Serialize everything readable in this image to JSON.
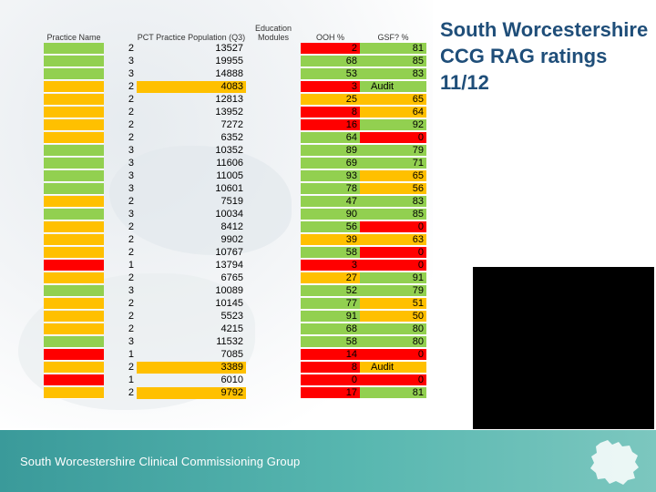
{
  "title": "South Worcestershire CCG RAG ratings 11/12",
  "footer": {
    "org_name": "South Worcestershire Clinical Commissioning Group"
  },
  "table": {
    "headers": {
      "practice_name": "Practice Name",
      "population": "PCT Practice Population (Q3)",
      "education": "Education Modules",
      "ooh": "OOH %",
      "gsf": "GSF? %"
    },
    "colors": {
      "green": "#92d050",
      "amber": "#ffc000",
      "red": "#ff0000"
    },
    "rows": [
      {
        "name_color": "green",
        "rag": "2",
        "pop": "13527",
        "pop_highlight": false,
        "ooh": "2",
        "ooh_color": "red",
        "gsf": "81",
        "gsf_note": "",
        "gsf_color": "green"
      },
      {
        "name_color": "green",
        "rag": "3",
        "pop": "19955",
        "pop_highlight": false,
        "ooh": "68",
        "ooh_color": "green",
        "gsf": "85",
        "gsf_note": "",
        "gsf_color": "green"
      },
      {
        "name_color": "green",
        "rag": "3",
        "pop": "14888",
        "pop_highlight": false,
        "ooh": "53",
        "ooh_color": "green",
        "gsf": "83",
        "gsf_note": "",
        "gsf_color": "green"
      },
      {
        "name_color": "amber",
        "rag": "2",
        "pop": "4083",
        "pop_highlight": true,
        "ooh": "3",
        "ooh_color": "red",
        "gsf": "",
        "gsf_note": "Audit",
        "gsf_color": "green"
      },
      {
        "name_color": "amber",
        "rag": "2",
        "pop": "12813",
        "pop_highlight": false,
        "ooh": "25",
        "ooh_color": "amber",
        "gsf": "65",
        "gsf_note": "",
        "gsf_color": "amber"
      },
      {
        "name_color": "amber",
        "rag": "2",
        "pop": "13952",
        "pop_highlight": false,
        "ooh": "8",
        "ooh_color": "red",
        "gsf": "64",
        "gsf_note": "",
        "gsf_color": "amber"
      },
      {
        "name_color": "amber",
        "rag": "2",
        "pop": "7272",
        "pop_highlight": false,
        "ooh": "16",
        "ooh_color": "red",
        "gsf": "92",
        "gsf_note": "",
        "gsf_color": "green"
      },
      {
        "name_color": "amber",
        "rag": "2",
        "pop": "6352",
        "pop_highlight": false,
        "ooh": "64",
        "ooh_color": "green",
        "gsf": "0",
        "gsf_note": "",
        "gsf_color": "red"
      },
      {
        "name_color": "green",
        "rag": "3",
        "pop": "10352",
        "pop_highlight": false,
        "ooh": "89",
        "ooh_color": "green",
        "gsf": "79",
        "gsf_note": "",
        "gsf_color": "green"
      },
      {
        "name_color": "green",
        "rag": "3",
        "pop": "11606",
        "pop_highlight": false,
        "ooh": "69",
        "ooh_color": "green",
        "gsf": "71",
        "gsf_note": "",
        "gsf_color": "green"
      },
      {
        "name_color": "green",
        "rag": "3",
        "pop": "11005",
        "pop_highlight": false,
        "ooh": "93",
        "ooh_color": "green",
        "gsf": "65",
        "gsf_note": "",
        "gsf_color": "amber"
      },
      {
        "name_color": "green",
        "rag": "3",
        "pop": "10601",
        "pop_highlight": false,
        "ooh": "78",
        "ooh_color": "green",
        "gsf": "56",
        "gsf_note": "",
        "gsf_color": "amber"
      },
      {
        "name_color": "amber",
        "rag": "2",
        "pop": "7519",
        "pop_highlight": false,
        "ooh": "47",
        "ooh_color": "green",
        "gsf": "83",
        "gsf_note": "",
        "gsf_color": "green"
      },
      {
        "name_color": "green",
        "rag": "3",
        "pop": "10034",
        "pop_highlight": false,
        "ooh": "90",
        "ooh_color": "green",
        "gsf": "85",
        "gsf_note": "",
        "gsf_color": "green"
      },
      {
        "name_color": "amber",
        "rag": "2",
        "pop": "8412",
        "pop_highlight": false,
        "ooh": "56",
        "ooh_color": "green",
        "gsf": "0",
        "gsf_note": "",
        "gsf_color": "red"
      },
      {
        "name_color": "amber",
        "rag": "2",
        "pop": "9902",
        "pop_highlight": false,
        "ooh": "39",
        "ooh_color": "amber",
        "gsf": "63",
        "gsf_note": "",
        "gsf_color": "amber"
      },
      {
        "name_color": "amber",
        "rag": "2",
        "pop": "10767",
        "pop_highlight": false,
        "ooh": "58",
        "ooh_color": "green",
        "gsf": "0",
        "gsf_note": "",
        "gsf_color": "red"
      },
      {
        "name_color": "red",
        "rag": "1",
        "pop": "13794",
        "pop_highlight": false,
        "ooh": "3",
        "ooh_color": "red",
        "gsf": "0",
        "gsf_note": "",
        "gsf_color": "red"
      },
      {
        "name_color": "amber",
        "rag": "2",
        "pop": "6765",
        "pop_highlight": false,
        "ooh": "27",
        "ooh_color": "amber",
        "gsf": "91",
        "gsf_note": "",
        "gsf_color": "green"
      },
      {
        "name_color": "green",
        "rag": "3",
        "pop": "10089",
        "pop_highlight": false,
        "ooh": "52",
        "ooh_color": "green",
        "gsf": "79",
        "gsf_note": "",
        "gsf_color": "green"
      },
      {
        "name_color": "amber",
        "rag": "2",
        "pop": "10145",
        "pop_highlight": false,
        "ooh": "77",
        "ooh_color": "green",
        "gsf": "51",
        "gsf_note": "",
        "gsf_color": "amber"
      },
      {
        "name_color": "amber",
        "rag": "2",
        "pop": "5523",
        "pop_highlight": false,
        "ooh": "91",
        "ooh_color": "green",
        "gsf": "50",
        "gsf_note": "",
        "gsf_color": "amber"
      },
      {
        "name_color": "amber",
        "rag": "2",
        "pop": "4215",
        "pop_highlight": false,
        "ooh": "68",
        "ooh_color": "green",
        "gsf": "80",
        "gsf_note": "",
        "gsf_color": "green"
      },
      {
        "name_color": "green",
        "rag": "3",
        "pop": "11532",
        "pop_highlight": false,
        "ooh": "58",
        "ooh_color": "green",
        "gsf": "80",
        "gsf_note": "",
        "gsf_color": "green"
      },
      {
        "name_color": "red",
        "rag": "1",
        "pop": "7085",
        "pop_highlight": false,
        "ooh": "14",
        "ooh_color": "red",
        "gsf": "0",
        "gsf_note": "",
        "gsf_color": "red"
      },
      {
        "name_color": "amber",
        "rag": "2",
        "pop": "3389",
        "pop_highlight": true,
        "ooh": "8",
        "ooh_color": "red",
        "gsf": "",
        "gsf_note": "Audit",
        "gsf_color": "amber"
      },
      {
        "name_color": "red",
        "rag": "1",
        "pop": "6010",
        "pop_highlight": false,
        "ooh": "0",
        "ooh_color": "red",
        "gsf": "0",
        "gsf_note": "",
        "gsf_color": "red"
      },
      {
        "name_color": "amber",
        "rag": "2",
        "pop": "9792",
        "pop_highlight": true,
        "ooh": "17",
        "ooh_color": "red",
        "gsf": "81",
        "gsf_note": "",
        "gsf_color": "green"
      }
    ]
  }
}
